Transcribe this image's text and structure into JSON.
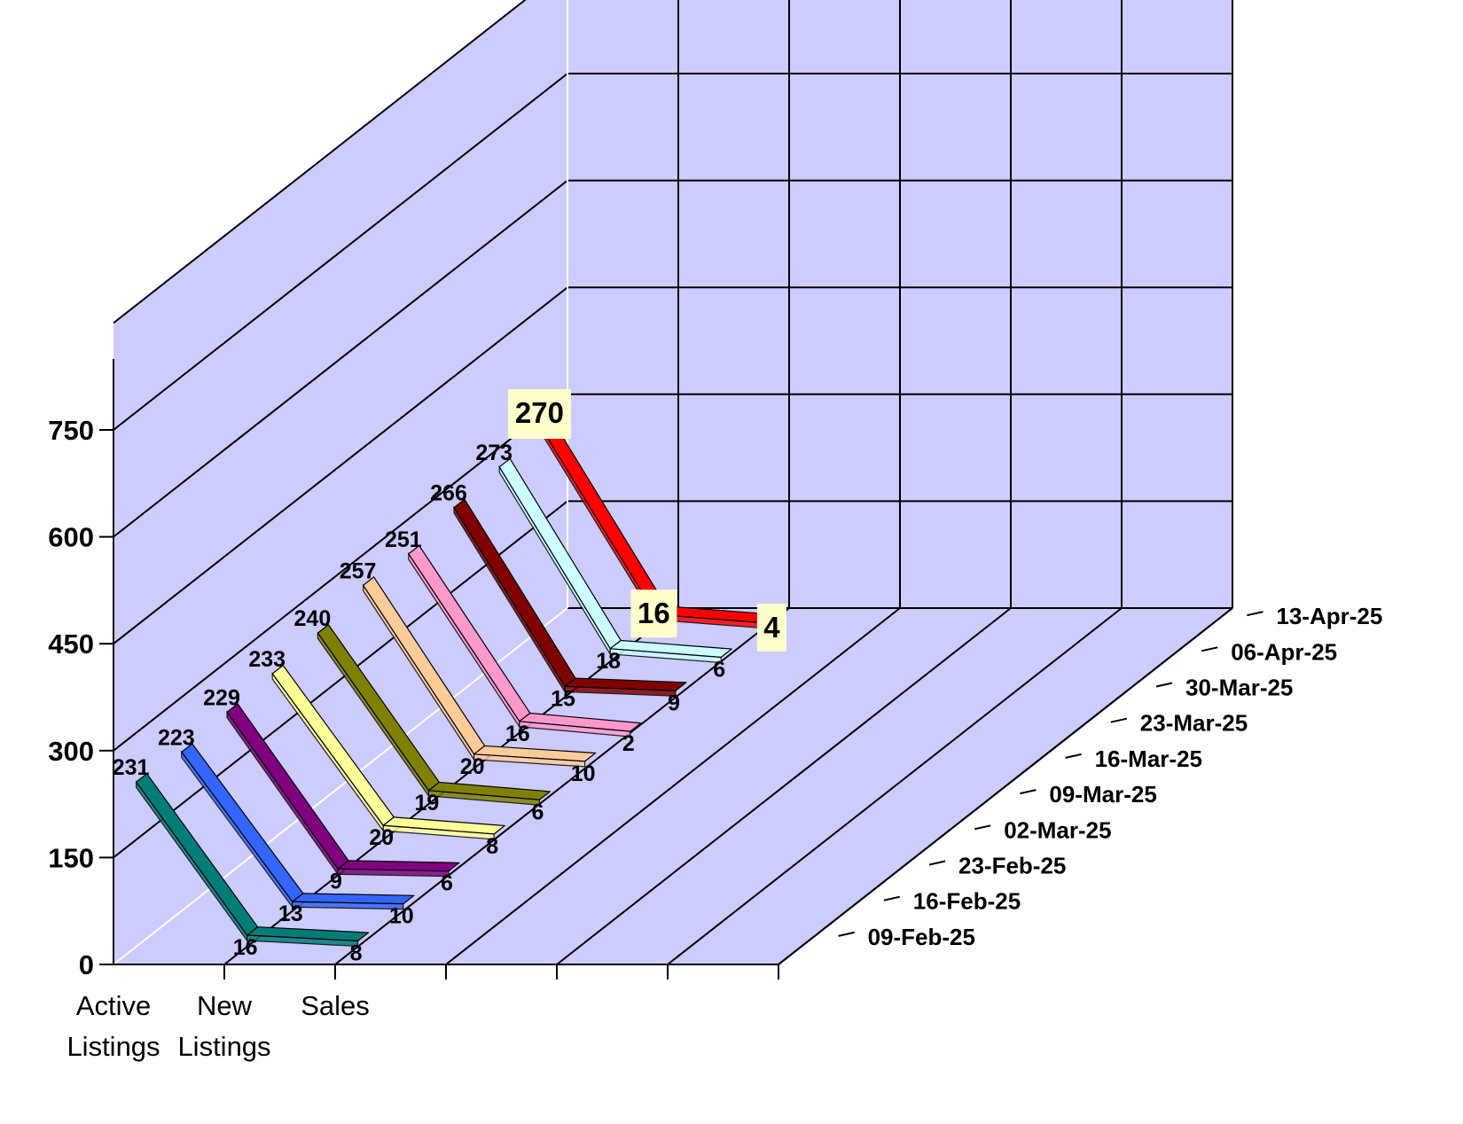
{
  "chart_data": {
    "type": "line",
    "title": "",
    "ylim": [
      0,
      750
    ],
    "y_ticks": [
      "0",
      "150",
      "300",
      "450",
      "600",
      "750"
    ],
    "categories": [
      [
        "Active",
        "Listings"
      ],
      [
        "New",
        "Listings"
      ],
      [
        "Sales"
      ]
    ],
    "series": [
      {
        "name": "09-Feb-25",
        "color": "#007d78",
        "values": [
          231,
          16,
          8
        ]
      },
      {
        "name": "16-Feb-25",
        "color": "#3366ff",
        "values": [
          223,
          13,
          10
        ]
      },
      {
        "name": "23-Feb-25",
        "color": "#800080",
        "values": [
          229,
          9,
          6
        ]
      },
      {
        "name": "02-Mar-25",
        "color": "#ffff99",
        "values": [
          233,
          20,
          8
        ]
      },
      {
        "name": "09-Mar-25",
        "color": "#808000",
        "values": [
          240,
          19,
          6
        ]
      },
      {
        "name": "16-Mar-25",
        "color": "#ffcc99",
        "values": [
          257,
          20,
          10
        ]
      },
      {
        "name": "23-Mar-25",
        "color": "#ff99cc",
        "values": [
          251,
          16,
          2
        ]
      },
      {
        "name": "30-Mar-25",
        "color": "#800000",
        "values": [
          266,
          15,
          9
        ]
      },
      {
        "name": "06-Apr-25",
        "color": "#ccffff",
        "values": [
          273,
          18,
          6
        ]
      },
      {
        "name": "13-Apr-25",
        "color": "#ff0000",
        "values": [
          270,
          16,
          4
        ]
      }
    ],
    "highlight_series": "13-Apr-25",
    "wall_color": "#ccccff",
    "grid": true,
    "depth_axis_labels_position": "right"
  }
}
